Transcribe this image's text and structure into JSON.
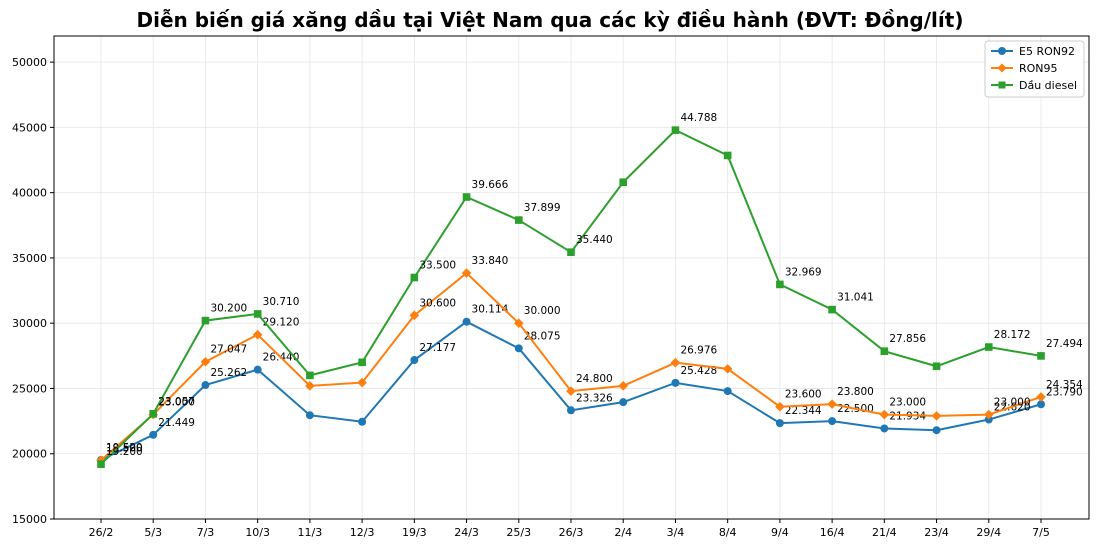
{
  "chart_data": {
    "type": "line",
    "title": "Diễn biến giá xăng dầu tại Việt Nam qua các kỳ điều hành (ĐVT: Đồng/lít)",
    "xlabel": "",
    "ylabel": "",
    "categories": [
      "26/2",
      "5/3",
      "7/3",
      "10/3",
      "11/3",
      "12/3",
      "19/3",
      "24/3",
      "25/3",
      "26/3",
      "2/4",
      "3/4",
      "8/4",
      "9/4",
      "16/4",
      "21/4",
      "23/4",
      "29/4",
      "7/5"
    ],
    "ylim": [
      15000,
      52000
    ],
    "yticks": [
      15000,
      20000,
      25000,
      30000,
      35000,
      40000,
      45000,
      50000
    ],
    "grid": true,
    "legend_position": "top-right",
    "series": [
      {
        "name": "E5 RON92",
        "color": "#1f77b4",
        "marker": "circle",
        "values": [
          19520,
          21449,
          25262,
          26440,
          22950,
          22450,
          27177,
          30114,
          28075,
          23326,
          23950,
          25428,
          24800,
          22344,
          22500,
          21934,
          21800,
          22620,
          23790
        ],
        "labels": [
          "19.520",
          "21.449",
          "25.262",
          "26.440",
          "",
          "",
          "27.177",
          "30.114",
          "28.075",
          "23.326",
          "",
          "25.428",
          "",
          "22.344",
          "22.500",
          "21.934",
          "",
          "22.620",
          "23.790"
        ]
      },
      {
        "name": "RON95",
        "color": "#ff7f0e",
        "marker": "diamond",
        "values": [
          19500,
          23000,
          27047,
          29120,
          25200,
          25450,
          30600,
          33840,
          30000,
          24800,
          25200,
          26976,
          26500,
          23600,
          23800,
          23000,
          22900,
          23000,
          24354
        ],
        "labels": [
          "19.500",
          "23.000",
          "27.047",
          "29.120",
          "",
          "",
          "30.600",
          "33.840",
          "30.000",
          "24.800",
          "",
          "26.976",
          "",
          "23.600",
          "23.800",
          "23.000",
          "",
          "23.000",
          "24.354"
        ]
      },
      {
        "name": "Dầu diesel",
        "color": "#2ca02c",
        "marker": "square",
        "values": [
          19200,
          23057,
          30200,
          30710,
          26000,
          27000,
          33500,
          39666,
          37899,
          35440,
          40800,
          44788,
          42850,
          32969,
          31041,
          27856,
          26700,
          28172,
          27494
        ],
        "labels": [
          "19.200",
          "23.057",
          "30.200",
          "30.710",
          "",
          "",
          "33.500",
          "39.666",
          "37.899",
          "35.440",
          "",
          "44.788",
          "",
          "32.969",
          "31.041",
          "27.856",
          "",
          "28.172",
          "27.494"
        ]
      }
    ]
  }
}
